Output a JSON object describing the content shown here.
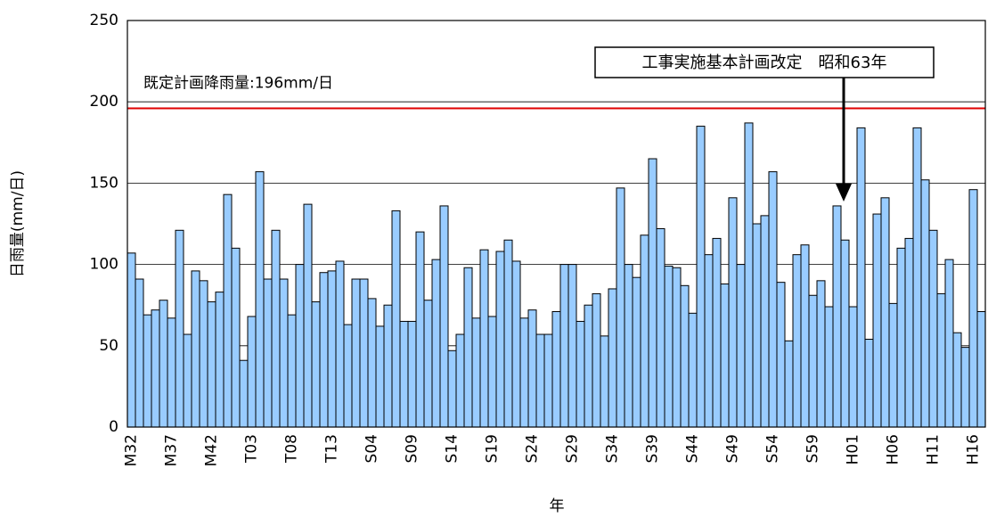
{
  "chart_data": {
    "type": "bar",
    "y_label": "日雨量(mm/日)",
    "x_label": "年",
    "categories": [
      "M32",
      null,
      null,
      null,
      null,
      "M37",
      null,
      null,
      null,
      null,
      "M42",
      null,
      null,
      null,
      null,
      "T03",
      null,
      null,
      null,
      null,
      "T08",
      null,
      null,
      null,
      null,
      "T13",
      null,
      null,
      null,
      null,
      "S04",
      null,
      null,
      null,
      null,
      "S09",
      null,
      null,
      null,
      null,
      "S14",
      null,
      null,
      null,
      null,
      "S19",
      null,
      null,
      null,
      null,
      "S24",
      null,
      null,
      null,
      null,
      "S29",
      null,
      null,
      null,
      null,
      "S34",
      null,
      null,
      null,
      null,
      "S39",
      null,
      null,
      null,
      null,
      "S44",
      null,
      null,
      null,
      null,
      "S49",
      null,
      null,
      null,
      null,
      "S54",
      null,
      null,
      null,
      null,
      "S59",
      null,
      null,
      null,
      null,
      "H01",
      null,
      null,
      null,
      null,
      "H06",
      null,
      null,
      null,
      null,
      "H11",
      null,
      null,
      null,
      null,
      "H16",
      null
    ],
    "values": [
      107,
      91,
      69,
      72,
      78,
      67,
      121,
      57,
      96,
      90,
      77,
      83,
      143,
      110,
      41,
      68,
      157,
      91,
      121,
      91,
      69,
      100,
      137,
      77,
      95,
      96,
      102,
      63,
      91,
      91,
      79,
      62,
      75,
      133,
      65,
      65,
      120,
      78,
      103,
      136,
      47,
      57,
      98,
      67,
      109,
      68,
      108,
      115,
      102,
      67,
      72,
      57,
      57,
      71,
      100,
      100,
      65,
      75,
      82,
      56,
      85,
      147,
      100,
      92,
      118,
      165,
      122,
      99,
      98,
      87,
      70,
      185,
      106,
      116,
      88,
      141,
      100,
      187,
      125,
      130,
      157,
      89,
      53,
      106,
      112,
      81,
      90,
      74,
      136,
      115,
      74,
      184,
      54,
      131,
      141,
      76,
      110,
      116,
      184,
      152,
      121,
      82,
      103,
      58,
      49,
      146,
      71
    ],
    "color": "#99ccff",
    "ylim": [
      0,
      250
    ],
    "yticks": [
      0,
      50,
      100,
      150,
      200,
      250
    ],
    "grid": true,
    "reference_line": {
      "value": 196,
      "color": "#e00000",
      "label": "既定計画降雨量:196mm/日"
    },
    "annotation": "工事実施基本計画改定　昭和63年"
  }
}
